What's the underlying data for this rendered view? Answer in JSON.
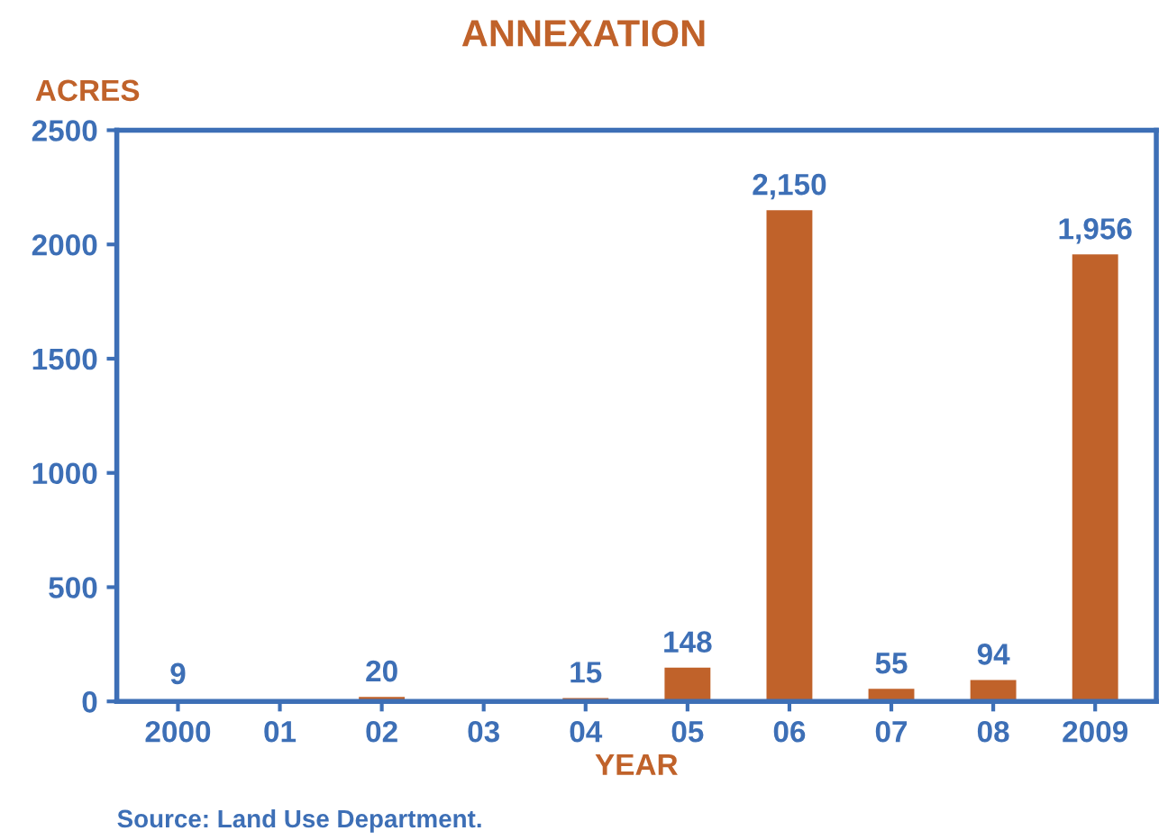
{
  "chart_data": {
    "type": "bar",
    "title": "ANNEXATION",
    "ylabel": "ACRES",
    "xlabel": "YEAR",
    "categories": [
      "2000",
      "01",
      "02",
      "03",
      "04",
      "05",
      "06",
      "07",
      "08",
      "2009"
    ],
    "values": [
      9,
      null,
      20,
      null,
      15,
      148,
      2150,
      55,
      94,
      1956
    ],
    "value_labels": [
      "9",
      null,
      "20",
      null,
      "15",
      "148",
      "2,150",
      "55",
      "94",
      "1,956"
    ],
    "color": "#c0622a",
    "ylim": [
      0,
      2500
    ],
    "yticks": [
      0,
      500,
      1000,
      1500,
      2000,
      2500
    ],
    "grid": false,
    "legend": false,
    "annotations": [
      "Source: Land Use Department."
    ]
  }
}
